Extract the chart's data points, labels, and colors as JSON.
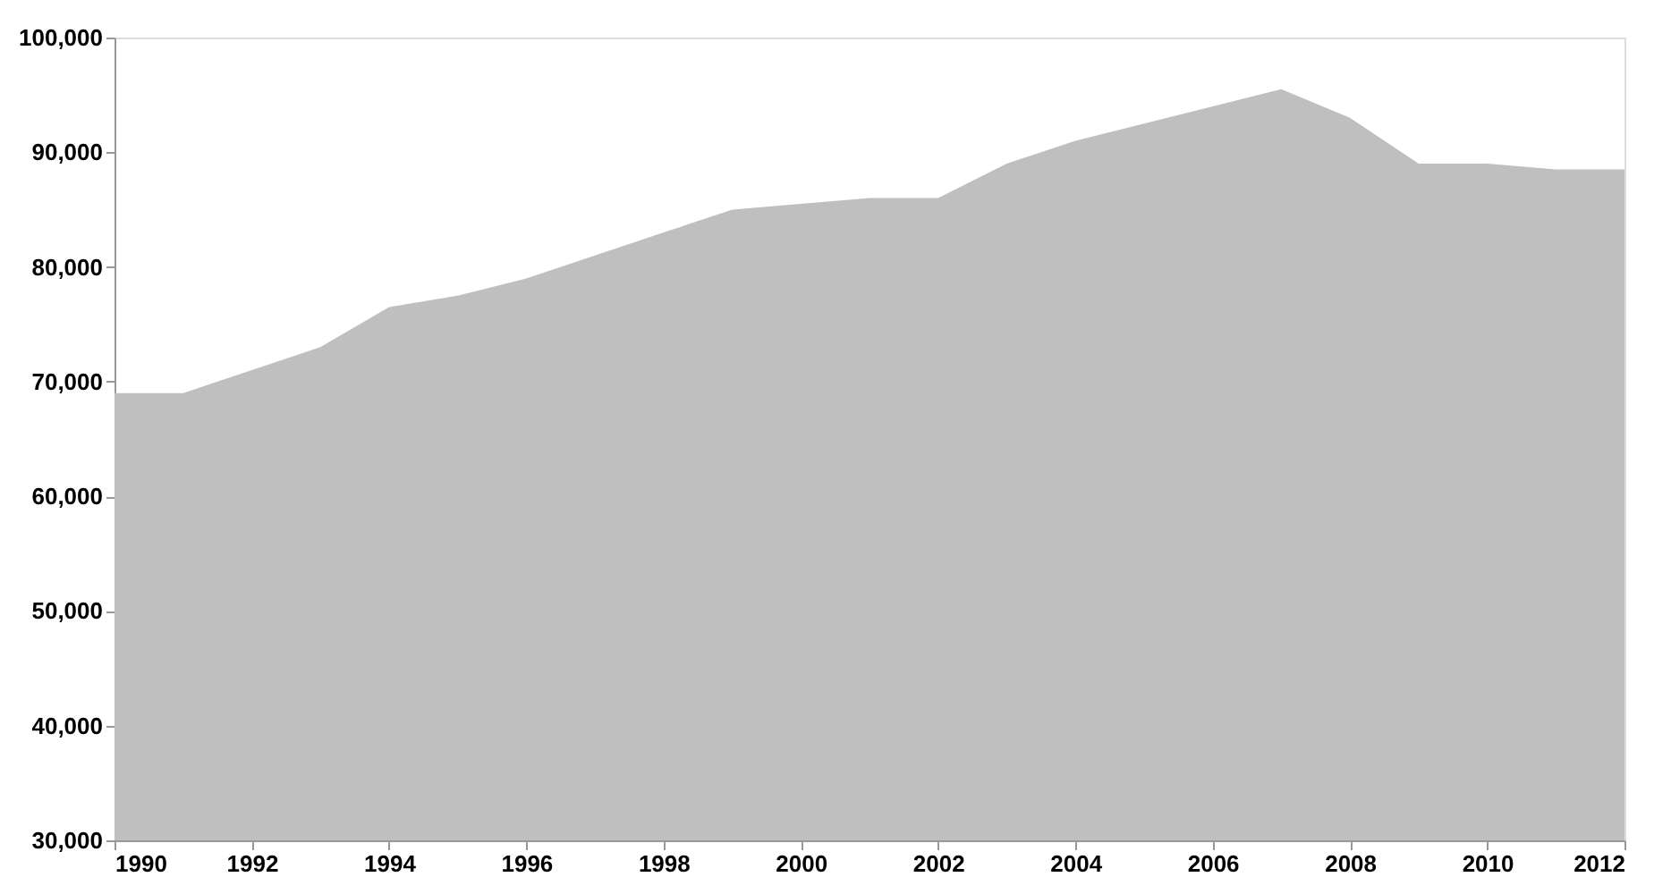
{
  "chart_data": {
    "type": "area",
    "x": [
      1990,
      1991,
      1992,
      1993,
      1994,
      1995,
      1996,
      1997,
      1998,
      1999,
      2000,
      2001,
      2002,
      2003,
      2004,
      2005,
      2006,
      2007,
      2008,
      2009,
      2010,
      2011,
      2012
    ],
    "series": [
      {
        "color": "#bfbfbf",
        "values": [
          69000,
          69000,
          71000,
          73000,
          76500,
          77500,
          79000,
          81000,
          83000,
          85000,
          85500,
          86000,
          86000,
          89000,
          91000,
          92500,
          94000,
          95500,
          93000,
          89000,
          89000,
          88500,
          88500
        ]
      }
    ],
    "xlim": [
      1990,
      2012
    ],
    "xticks": [
      1990,
      1992,
      1994,
      1996,
      1998,
      2000,
      2002,
      2004,
      2006,
      2008,
      2010,
      2012
    ],
    "ylim": [
      30000,
      100000
    ],
    "yticks": [
      {
        "value": 30000,
        "label": "30,000"
      },
      {
        "value": 40000,
        "label": "40,000"
      },
      {
        "value": 50000,
        "label": "50,000"
      },
      {
        "value": 60000,
        "label": "60,000"
      },
      {
        "value": 70000,
        "label": "70,000"
      },
      {
        "value": 80000,
        "label": "80,000"
      },
      {
        "value": 90000,
        "label": "90,000"
      },
      {
        "value": 100000,
        "label": "100,000"
      }
    ],
    "grid": false
  }
}
